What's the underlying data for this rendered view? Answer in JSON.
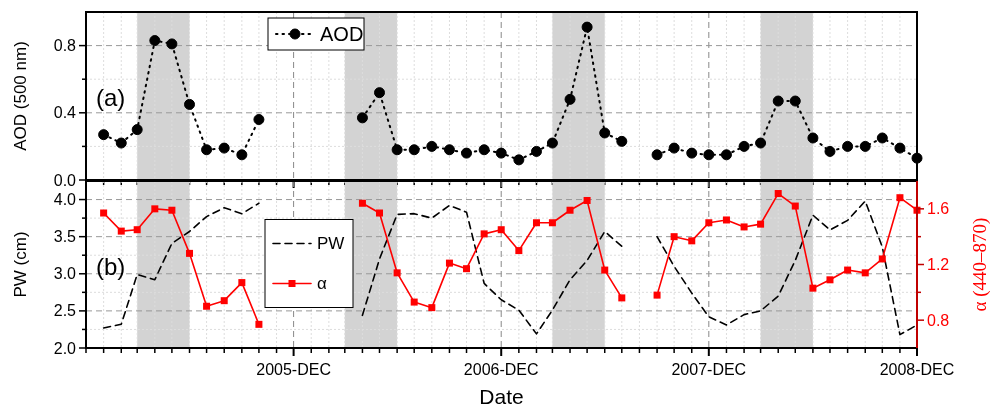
{
  "chart_data": [
    {
      "type": "line",
      "ylabel": "AOD (500 nm)",
      "annotations": [
        "(a)"
      ],
      "x": [
        "2005-01",
        "2005-02",
        "2005-03",
        "2005-04",
        "2005-05",
        "2005-06",
        "2005-07",
        "2005-08",
        "2005-09",
        "2005-10",
        "2005-11",
        "2005-12",
        "2006-01",
        "2006-02",
        "2006-03",
        "2006-04",
        "2006-05",
        "2006-06",
        "2006-07",
        "2006-08",
        "2006-09",
        "2006-10",
        "2006-11",
        "2006-12",
        "2007-01",
        "2007-02",
        "2007-03",
        "2007-04",
        "2007-05",
        "2007-06",
        "2007-07",
        "2007-08",
        "2007-09",
        "2007-10",
        "2007-11",
        "2007-12",
        "2008-01",
        "2008-02",
        "2008-03",
        "2008-04",
        "2008-05",
        "2008-06",
        "2008-07",
        "2008-08",
        "2008-09",
        "2008-10",
        "2008-11",
        "2008-12"
      ],
      "series": [
        {
          "name": "AOD",
          "color": "#000000",
          "marker": "circle",
          "line_style": "dotted",
          "values": [
            0.27,
            0.22,
            0.3,
            0.83,
            0.81,
            0.45,
            0.18,
            0.19,
            0.15,
            0.36,
            null,
            null,
            null,
            null,
            null,
            0.37,
            0.52,
            0.18,
            0.18,
            0.2,
            0.18,
            0.16,
            0.18,
            0.16,
            0.12,
            0.17,
            0.22,
            0.48,
            0.91,
            0.28,
            0.23,
            null,
            0.15,
            0.19,
            0.16,
            0.15,
            0.15,
            0.2,
            0.22,
            0.47,
            0.47,
            0.25,
            0.17,
            0.2,
            0.2,
            0.25,
            0.19,
            0.13
          ]
        }
      ],
      "xlim": [
        "2004-12",
        "2008-12"
      ],
      "xticks": [
        {
          "value": "2004-12",
          "label": null
        },
        {
          "value": "2005-01",
          "label": null
        },
        {
          "value": "2005-02",
          "label": null
        },
        {
          "value": "2005-03",
          "label": null
        },
        {
          "value": "2005-04",
          "label": null
        },
        {
          "value": "2005-05",
          "label": null
        },
        {
          "value": "2005-06",
          "label": null
        },
        {
          "value": "2005-07",
          "label": null
        },
        {
          "value": "2005-08",
          "label": null
        },
        {
          "value": "2005-09",
          "label": null
        },
        {
          "value": "2005-10",
          "label": null
        },
        {
          "value": "2005-11",
          "label": null
        },
        {
          "value": "2005-12",
          "label": null
        },
        {
          "value": "2006-01",
          "label": null
        },
        {
          "value": "2006-02",
          "label": null
        },
        {
          "value": "2006-03",
          "label": null
        },
        {
          "value": "2006-04",
          "label": null
        },
        {
          "value": "2006-05",
          "label": null
        },
        {
          "value": "2006-06",
          "label": null
        },
        {
          "value": "2006-07",
          "label": null
        },
        {
          "value": "2006-08",
          "label": null
        },
        {
          "value": "2006-09",
          "label": null
        },
        {
          "value": "2006-10",
          "label": null
        },
        {
          "value": "2006-11",
          "label": null
        },
        {
          "value": "2006-12",
          "label": null
        },
        {
          "value": "2007-01",
          "label": null
        },
        {
          "value": "2007-02",
          "label": null
        },
        {
          "value": "2007-03",
          "label": null
        },
        {
          "value": "2007-04",
          "label": null
        },
        {
          "value": "2007-05",
          "label": null
        },
        {
          "value": "2007-06",
          "label": null
        },
        {
          "value": "2007-07",
          "label": null
        },
        {
          "value": "2007-08",
          "label": null
        },
        {
          "value": "2007-09",
          "label": null
        },
        {
          "value": "2007-10",
          "label": null
        },
        {
          "value": "2007-11",
          "label": null
        },
        {
          "value": "2007-12",
          "label": null
        },
        {
          "value": "2008-01",
          "label": null
        },
        {
          "value": "2008-02",
          "label": null
        },
        {
          "value": "2008-03",
          "label": null
        },
        {
          "value": "2008-04",
          "label": null
        },
        {
          "value": "2008-05",
          "label": null
        },
        {
          "value": "2008-06",
          "label": null
        },
        {
          "value": "2008-07",
          "label": null
        },
        {
          "value": "2008-08",
          "label": null
        },
        {
          "value": "2008-09",
          "label": null
        },
        {
          "value": "2008-10",
          "label": null
        },
        {
          "value": "2008-11",
          "label": null
        },
        {
          "value": "2008-12",
          "label": null
        }
      ],
      "ylim": [
        0,
        1.0
      ],
      "yticks": [
        {
          "value": 0,
          "label": "0.0"
        },
        {
          "value": 0.2,
          "label": null
        },
        0.4,
        {
          "value": 0.6,
          "label": null
        },
        0.8
      ],
      "bands": [
        {
          "axis": "x",
          "from": "2005-03",
          "to": "2005-06",
          "color": "#d3d3d3"
        },
        {
          "axis": "x",
          "from": "2006-03",
          "to": "2006-06",
          "color": "#d3d3d3"
        },
        {
          "axis": "x",
          "from": "2007-03",
          "to": "2007-06",
          "color": "#d3d3d3"
        },
        {
          "axis": "x",
          "from": "2008-03",
          "to": "2008-06",
          "color": "#d3d3d3"
        }
      ],
      "grid": true,
      "legend": "top",
      "tick_labels": "y"
    },
    {
      "type": "line",
      "xlabel": "Date",
      "ylabel": "PW (cm)",
      "y2label": "α (440–870)",
      "annotations": [
        "(b)"
      ],
      "x": [
        "2005-01",
        "2005-02",
        "2005-03",
        "2005-04",
        "2005-05",
        "2005-06",
        "2005-07",
        "2005-08",
        "2005-09",
        "2005-10",
        "2005-11",
        "2005-12",
        "2006-01",
        "2006-02",
        "2006-03",
        "2006-04",
        "2006-05",
        "2006-06",
        "2006-07",
        "2006-08",
        "2006-09",
        "2006-10",
        "2006-11",
        "2006-12",
        "2007-01",
        "2007-02",
        "2007-03",
        "2007-04",
        "2007-05",
        "2007-06",
        "2007-07",
        "2007-08",
        "2007-09",
        "2007-10",
        "2007-11",
        "2007-12",
        "2008-01",
        "2008-02",
        "2008-03",
        "2008-04",
        "2008-05",
        "2008-06",
        "2008-07",
        "2008-08",
        "2008-09",
        "2008-10",
        "2008-11",
        "2008-12"
      ],
      "series": [
        {
          "name": "PW",
          "color": "#000000",
          "marker": "none",
          "line_style": "dashed",
          "values": [
            2.27,
            2.32,
            2.99,
            2.92,
            3.41,
            3.57,
            3.77,
            3.89,
            3.81,
            3.95,
            null,
            null,
            null,
            null,
            null,
            2.44,
            3.2,
            3.8,
            3.81,
            3.75,
            3.92,
            3.83,
            2.87,
            2.65,
            2.51,
            2.19,
            2.51,
            2.92,
            3.18,
            3.57,
            3.37,
            null,
            3.5,
            3.1,
            2.74,
            2.42,
            2.31,
            2.45,
            2.5,
            2.7,
            3.18,
            3.79,
            3.59,
            3.72,
            3.98,
            3.36,
            2.18,
            2.31
          ]
        },
        {
          "name": "α",
          "color": "#ff0000",
          "marker": "square",
          "line_style": "solid",
          "axis": "y2",
          "values": [
            1.57,
            1.44,
            1.45,
            1.6,
            1.59,
            1.28,
            0.9,
            0.94,
            1.07,
            0.77,
            null,
            null,
            null,
            null,
            null,
            1.64,
            1.57,
            1.14,
            0.93,
            0.89,
            1.21,
            1.17,
            1.42,
            1.45,
            1.3,
            1.5,
            1.5,
            1.59,
            1.66,
            1.16,
            0.96,
            null,
            0.98,
            1.4,
            1.37,
            1.5,
            1.52,
            1.47,
            1.49,
            1.71,
            1.62,
            1.03,
            1.09,
            1.16,
            1.14,
            1.24,
            1.68,
            1.59
          ]
        }
      ],
      "xlim": [
        "2004-12",
        "2008-12"
      ],
      "xticks": [
        {
          "value": "2004-12",
          "label": null
        },
        {
          "value": "2005-01",
          "label": null
        },
        {
          "value": "2005-02",
          "label": null
        },
        {
          "value": "2005-03",
          "label": null
        },
        {
          "value": "2005-04",
          "label": null
        },
        {
          "value": "2005-05",
          "label": null
        },
        {
          "value": "2005-06",
          "label": null
        },
        {
          "value": "2005-07",
          "label": null
        },
        {
          "value": "2005-08",
          "label": null
        },
        {
          "value": "2005-09",
          "label": null
        },
        {
          "value": "2005-10",
          "label": null
        },
        {
          "value": "2005-11",
          "label": null
        },
        {
          "value": "2005-12",
          "label": "2005-DEC"
        },
        {
          "value": "2006-01",
          "label": null
        },
        {
          "value": "2006-02",
          "label": null
        },
        {
          "value": "2006-03",
          "label": null
        },
        {
          "value": "2006-04",
          "label": null
        },
        {
          "value": "2006-05",
          "label": null
        },
        {
          "value": "2006-06",
          "label": null
        },
        {
          "value": "2006-07",
          "label": null
        },
        {
          "value": "2006-08",
          "label": null
        },
        {
          "value": "2006-09",
          "label": null
        },
        {
          "value": "2006-10",
          "label": null
        },
        {
          "value": "2006-11",
          "label": null
        },
        {
          "value": "2006-12",
          "label": "2006-DEC"
        },
        {
          "value": "2007-01",
          "label": null
        },
        {
          "value": "2007-02",
          "label": null
        },
        {
          "value": "2007-03",
          "label": null
        },
        {
          "value": "2007-04",
          "label": null
        },
        {
          "value": "2007-05",
          "label": null
        },
        {
          "value": "2007-06",
          "label": null
        },
        {
          "value": "2007-07",
          "label": null
        },
        {
          "value": "2007-08",
          "label": null
        },
        {
          "value": "2007-09",
          "label": null
        },
        {
          "value": "2007-10",
          "label": null
        },
        {
          "value": "2007-11",
          "label": null
        },
        {
          "value": "2007-12",
          "label": "2007-DEC"
        },
        {
          "value": "2008-01",
          "label": null
        },
        {
          "value": "2008-02",
          "label": null
        },
        {
          "value": "2008-03",
          "label": null
        },
        {
          "value": "2008-04",
          "label": null
        },
        {
          "value": "2008-05",
          "label": null
        },
        {
          "value": "2008-06",
          "label": null
        },
        {
          "value": "2008-07",
          "label": null
        },
        {
          "value": "2008-08",
          "label": null
        },
        {
          "value": "2008-09",
          "label": null
        },
        {
          "value": "2008-10",
          "label": null
        },
        {
          "value": "2008-11",
          "label": null
        },
        {
          "value": "2008-12",
          "label": "2008-DEC"
        }
      ],
      "ylim": [
        2.0,
        4.25
      ],
      "yticks": [
        {
          "value": 2,
          "label": "2.0"
        },
        {
          "value": 2.25,
          "label": null
        },
        2.5,
        {
          "value": 2.75,
          "label": null
        },
        {
          "value": 3,
          "label": "3.0"
        },
        {
          "value": 3.25,
          "label": null
        },
        3.5,
        {
          "value": 3.75,
          "label": null
        },
        {
          "value": 4,
          "label": "4.0"
        }
      ],
      "y2lim": [
        0.6,
        1.8
      ],
      "y2ticks": [
        0.8,
        {
          "value": 1.0,
          "label": null
        },
        1.2,
        {
          "value": 1.4,
          "label": null
        },
        1.6
      ],
      "bands": [
        {
          "axis": "x",
          "from": "2005-03",
          "to": "2005-06",
          "color": "#d3d3d3"
        },
        {
          "axis": "x",
          "from": "2006-03",
          "to": "2006-06",
          "color": "#d3d3d3"
        },
        {
          "axis": "x",
          "from": "2007-03",
          "to": "2007-06",
          "color": "#d3d3d3"
        },
        {
          "axis": "x",
          "from": "2008-03",
          "to": "2008-06",
          "color": "#d3d3d3"
        }
      ],
      "grid": true,
      "legend": "left"
    }
  ]
}
